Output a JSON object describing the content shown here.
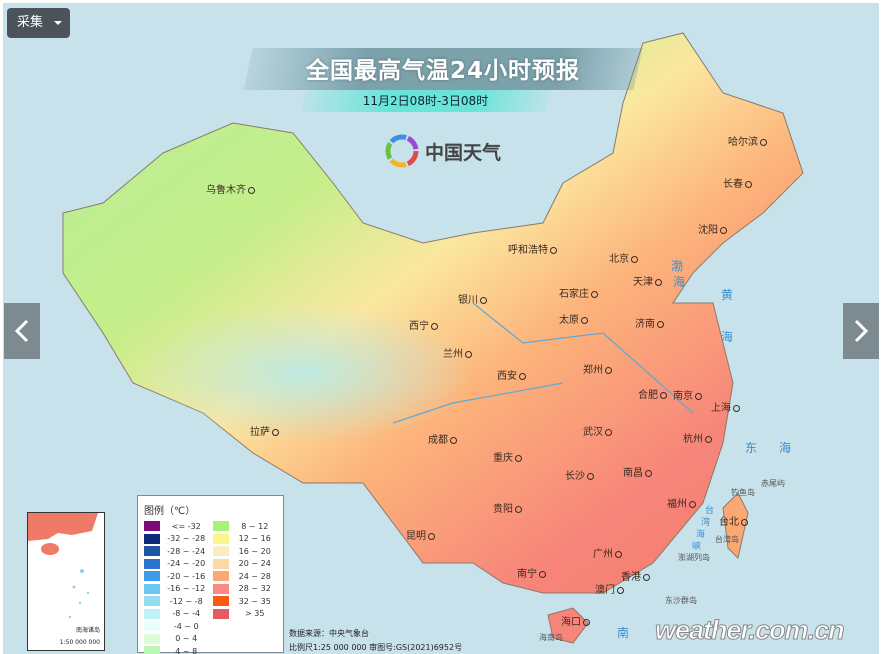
{
  "toolbar": {
    "collect_label": "采集",
    "collect_icon": "caret-down-icon"
  },
  "nav": {
    "prev_icon": "chevron-left-icon",
    "next_icon": "chevron-right-icon"
  },
  "header": {
    "title": "全国最高气温24小时预报",
    "subtitle": "11月2日08时-3日08时",
    "brand": "中国天气"
  },
  "cities": [
    "乌鲁木齐",
    "哈尔滨",
    "长春",
    "沈阳",
    "呼和浩特",
    "北京",
    "天津",
    "石家庄",
    "银川",
    "太原",
    "济南",
    "西宁",
    "兰州",
    "西安",
    "郑州",
    "合肥",
    "南京",
    "上海",
    "拉萨",
    "成都",
    "武汉",
    "杭州",
    "重庆",
    "长沙",
    "南昌",
    "贵阳",
    "昆明",
    "福州",
    "台北",
    "广州",
    "南宁",
    "香港",
    "澳门",
    "海口"
  ],
  "seas": [
    "渤",
    "海",
    "黄",
    "海",
    "东",
    "海",
    "南",
    "台",
    "湾",
    "海",
    "峡"
  ],
  "islands": [
    "钓鱼岛",
    "赤尾屿",
    "台湾岛",
    "澎湖列岛",
    "东沙群岛",
    "海南岛"
  ],
  "legend": {
    "title": "图例（℃）",
    "items": [
      {
        "label": "<= -32",
        "color": "#7a0a7a"
      },
      {
        "label": "-32 ~ -28",
        "color": "#0b2a7a"
      },
      {
        "label": "-28 ~ -24",
        "color": "#1f55a5"
      },
      {
        "label": "-24 ~ -20",
        "color": "#2a73cf"
      },
      {
        "label": "-20 ~ -16",
        "color": "#3d9be6"
      },
      {
        "label": "-16 ~ -12",
        "color": "#6cc6f2"
      },
      {
        "label": "-12 ~ -8",
        "color": "#95dcf0"
      },
      {
        "label": "-8 ~ -4",
        "color": "#bdf2f8"
      },
      {
        "label": "-4 ~ 0",
        "color": "#eafdfd"
      },
      {
        "label": "0 ~ 4",
        "color": "#dcfbd8"
      },
      {
        "label": "4 ~ 8",
        "color": "#bdf7b6"
      },
      {
        "label": "8 ~ 12",
        "color": "#a9f27a"
      },
      {
        "label": "12 ~ 16",
        "color": "#f7f78a"
      },
      {
        "label": "16 ~ 20",
        "color": "#fdecc1"
      },
      {
        "label": "20 ~ 24",
        "color": "#fdd7a6"
      },
      {
        "label": "24 ~ 28",
        "color": "#fca872"
      },
      {
        "label": "28 ~ 32",
        "color": "#fb8a84"
      },
      {
        "label": "32 ~ 35",
        "color": "#fc5a10"
      },
      {
        "label": "> 35",
        "color": "#e65a63"
      }
    ]
  },
  "source": {
    "line1": "数据来源：中央气象台",
    "line2": "比例尺1:25 000 000   审图号:GS(2021)6952号"
  },
  "inset": {
    "name": "南海诸岛",
    "scale": "1:50 000 000"
  },
  "watermark": "weather.com.cn"
}
